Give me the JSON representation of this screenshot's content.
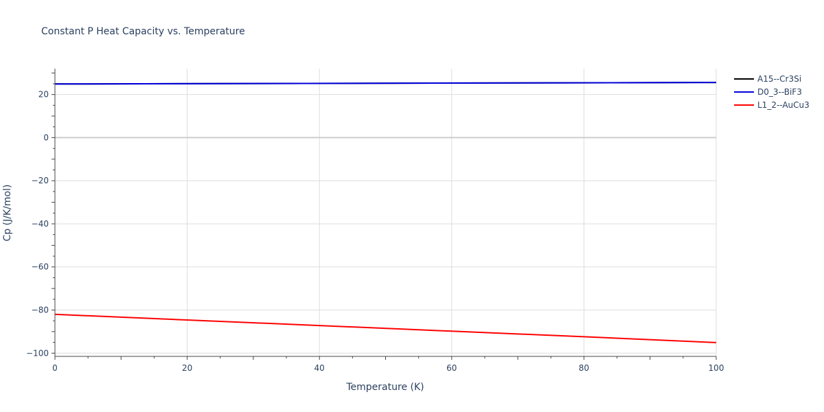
{
  "chart_data": {
    "type": "line",
    "title": "Constant P Heat Capacity vs. Temperature",
    "xlabel": "Temperature (K)",
    "ylabel": "Cp (J/K/mol)",
    "xlim": [
      0,
      100
    ],
    "ylim": [
      -101.5,
      32
    ],
    "x_ticks": [
      0,
      20,
      40,
      60,
      80,
      100
    ],
    "y_ticks": [
      20,
      0,
      -20,
      -40,
      -60,
      -80,
      -100
    ],
    "y_tick_labels": [
      "20",
      "0",
      "−20",
      "−40",
      "−60",
      "−80",
      "−100"
    ],
    "grid": true,
    "legend_position": "top-right",
    "series": [
      {
        "name": "A15--Cr3Si",
        "color": "#000000",
        "x": [
          0,
          100
        ],
        "y": [
          24.9,
          25.6
        ]
      },
      {
        "name": "D0_3--BiF3",
        "color": "#0000dd",
        "x": [
          0,
          100
        ],
        "y": [
          24.9,
          25.6
        ]
      },
      {
        "name": "L1_2--AuCu3",
        "color": "#ff0000",
        "x": [
          0,
          20,
          40,
          60,
          80,
          100
        ],
        "y": [
          -82.0,
          -84.6,
          -87.2,
          -89.8,
          -92.4,
          -95.1
        ]
      }
    ]
  }
}
